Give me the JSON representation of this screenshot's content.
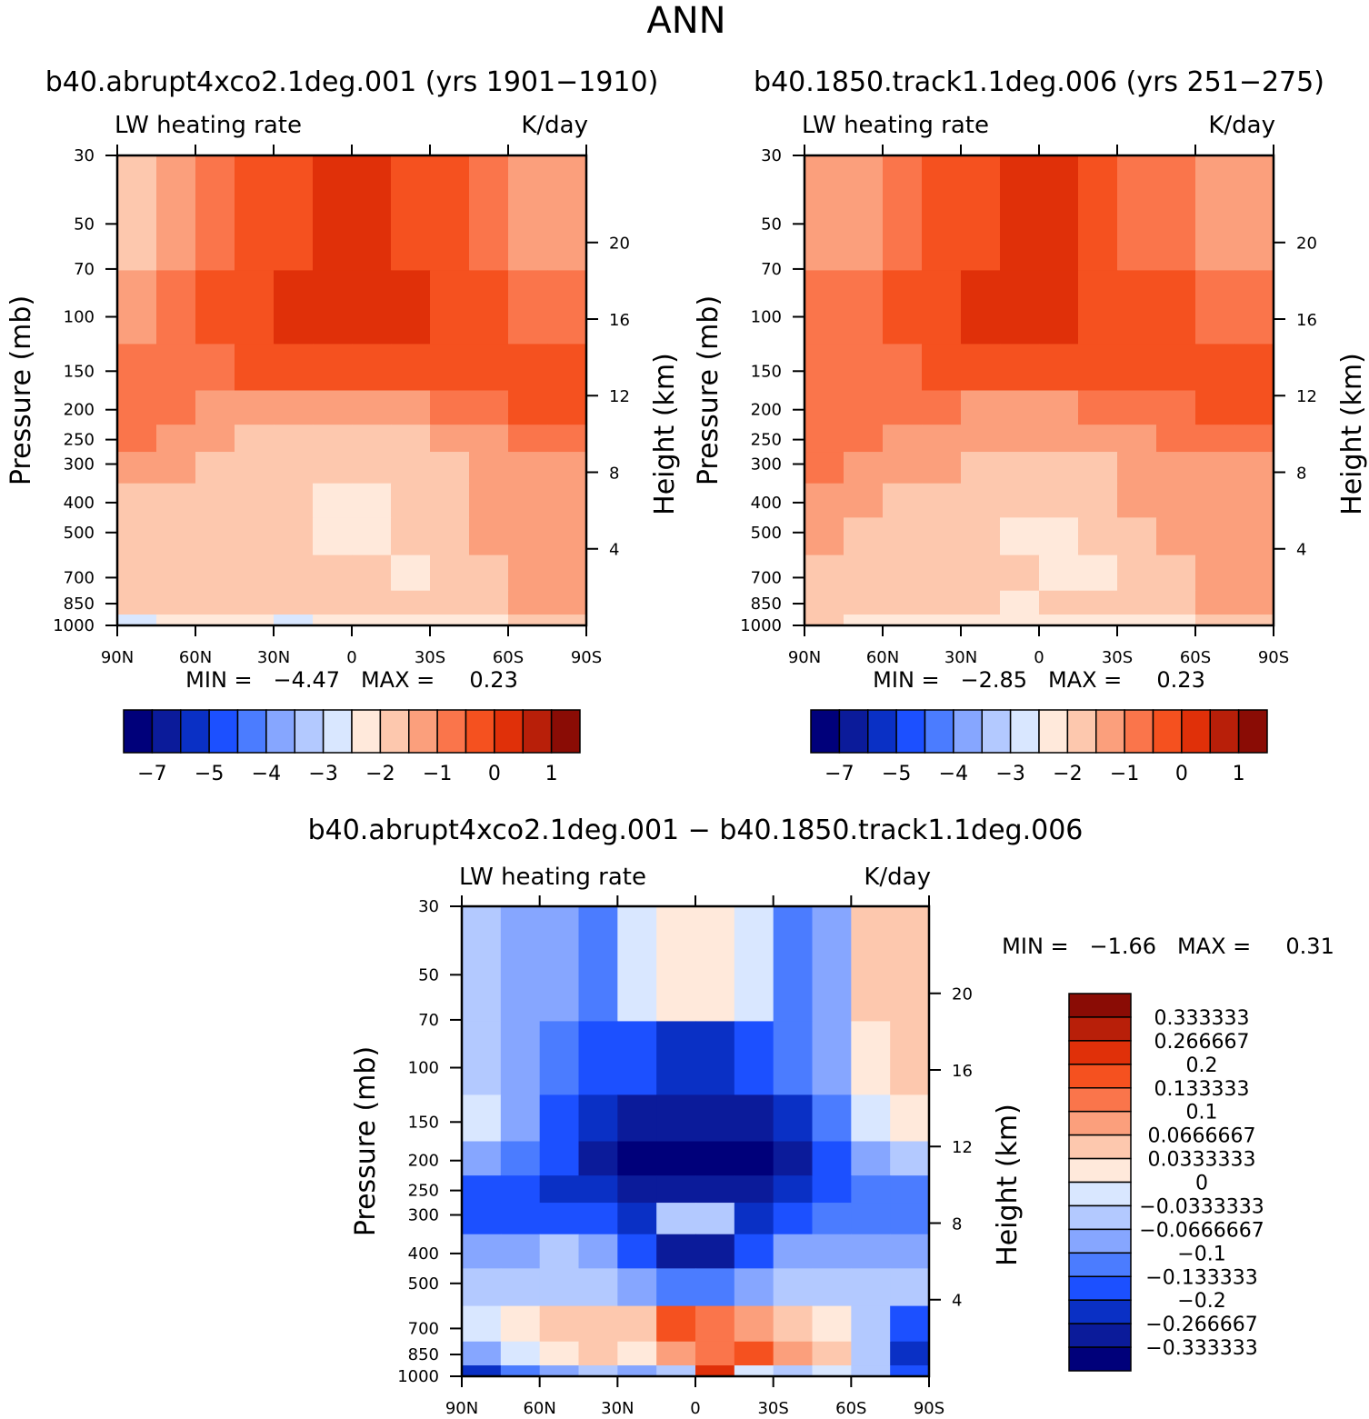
{
  "figure_title": "ANN",
  "chart_data": [
    {
      "type": "heatmap",
      "title": "b40.abrupt4xco2.1deg.001 (yrs 1901−1910)",
      "variable_label": "LW heating rate",
      "units_label": "K/day",
      "xlabel": "",
      "ylabel": "Pressure (mb)",
      "y2label": "Height (km)",
      "x_ticks": [
        "90N",
        "60N",
        "30N",
        "0",
        "30S",
        "60S",
        "90S"
      ],
      "y_ticks": [
        30,
        50,
        70,
        100,
        150,
        200,
        250,
        300,
        400,
        500,
        700,
        850,
        1000
      ],
      "ylim": [
        30,
        1000
      ],
      "height_ticks": [
        20,
        16,
        12,
        8,
        4
      ],
      "stats_text": "MIN =   −4.47   MAX =     0.23",
      "min": -4.47,
      "max": 0.23,
      "colorbar_labels": [
        "−7",
        "−5",
        "−4",
        "−3",
        "−2",
        "−1",
        "0",
        "1"
      ],
      "bands": [
        {
          "pressure": 50,
          "levels": [
            9,
            10,
            11,
            12,
            12,
            13,
            13,
            12,
            12,
            11,
            10,
            10
          ]
        },
        {
          "pressure": 100,
          "levels": [
            10,
            11,
            12,
            12,
            13,
            13,
            13,
            13,
            12,
            12,
            11,
            11
          ]
        },
        {
          "pressure": 150,
          "levels": [
            11,
            11,
            11,
            12,
            12,
            12,
            12,
            12,
            12,
            12,
            12,
            12
          ]
        },
        {
          "pressure": 200,
          "levels": [
            11,
            11,
            10,
            10,
            10,
            10,
            10,
            10,
            11,
            11,
            12,
            12
          ]
        },
        {
          "pressure": 250,
          "levels": [
            11,
            10,
            10,
            9,
            9,
            9,
            9,
            9,
            10,
            10,
            11,
            11
          ]
        },
        {
          "pressure": 300,
          "levels": [
            10,
            10,
            9,
            9,
            9,
            9,
            9,
            9,
            9,
            10,
            10,
            10
          ]
        },
        {
          "pressure": 400,
          "levels": [
            9,
            9,
            9,
            9,
            9,
            8,
            8,
            9,
            9,
            10,
            10,
            10
          ]
        },
        {
          "pressure": 500,
          "levels": [
            9,
            9,
            9,
            9,
            9,
            8,
            8,
            9,
            9,
            10,
            10,
            10
          ]
        },
        {
          "pressure": 700,
          "levels": [
            9,
            9,
            9,
            9,
            9,
            9,
            9,
            8,
            9,
            9,
            10,
            10
          ]
        },
        {
          "pressure": 850,
          "levels": [
            9,
            9,
            9,
            9,
            9,
            9,
            9,
            9,
            9,
            9,
            10,
            10
          ]
        },
        {
          "pressure": 1000,
          "levels": [
            7,
            8,
            8,
            8,
            7,
            8,
            8,
            8,
            8,
            8,
            9,
            9
          ]
        }
      ]
    },
    {
      "type": "heatmap",
      "title": "b40.1850.track1.1deg.006 (yrs 251−275)",
      "variable_label": "LW heating rate",
      "units_label": "K/day",
      "xlabel": "",
      "ylabel": "Pressure (mb)",
      "y2label": "Height (km)",
      "x_ticks": [
        "90N",
        "60N",
        "30N",
        "0",
        "30S",
        "60S",
        "90S"
      ],
      "y_ticks": [
        30,
        50,
        70,
        100,
        150,
        200,
        250,
        300,
        400,
        500,
        700,
        850,
        1000
      ],
      "ylim": [
        30,
        1000
      ],
      "height_ticks": [
        20,
        16,
        12,
        8,
        4
      ],
      "stats_text": "MIN =   −2.85   MAX =     0.23",
      "min": -2.85,
      "max": 0.23,
      "colorbar_labels": [
        "−7",
        "−5",
        "−4",
        "−3",
        "−2",
        "−1",
        "0",
        "1"
      ],
      "bands": [
        {
          "pressure": 50,
          "levels": [
            10,
            10,
            11,
            12,
            12,
            13,
            13,
            12,
            11,
            11,
            10,
            10
          ]
        },
        {
          "pressure": 100,
          "levels": [
            11,
            11,
            12,
            12,
            13,
            13,
            13,
            12,
            12,
            12,
            11,
            11
          ]
        },
        {
          "pressure": 150,
          "levels": [
            11,
            11,
            11,
            12,
            12,
            12,
            12,
            12,
            12,
            12,
            12,
            12
          ]
        },
        {
          "pressure": 200,
          "levels": [
            11,
            11,
            11,
            11,
            10,
            10,
            10,
            11,
            11,
            11,
            12,
            12
          ]
        },
        {
          "pressure": 250,
          "levels": [
            11,
            11,
            10,
            10,
            10,
            10,
            10,
            10,
            10,
            11,
            11,
            11
          ]
        },
        {
          "pressure": 300,
          "levels": [
            11,
            10,
            10,
            10,
            9,
            9,
            9,
            9,
            10,
            10,
            10,
            10
          ]
        },
        {
          "pressure": 400,
          "levels": [
            10,
            10,
            9,
            9,
            9,
            9,
            9,
            9,
            10,
            10,
            10,
            10
          ]
        },
        {
          "pressure": 500,
          "levels": [
            10,
            9,
            9,
            9,
            9,
            8,
            8,
            9,
            9,
            10,
            10,
            10
          ]
        },
        {
          "pressure": 700,
          "levels": [
            9,
            9,
            9,
            9,
            9,
            9,
            8,
            8,
            9,
            9,
            10,
            10
          ]
        },
        {
          "pressure": 850,
          "levels": [
            9,
            9,
            9,
            9,
            9,
            8,
            9,
            9,
            9,
            9,
            10,
            10
          ]
        },
        {
          "pressure": 1000,
          "levels": [
            9,
            8,
            8,
            8,
            8,
            8,
            8,
            8,
            8,
            8,
            9,
            9
          ]
        }
      ]
    },
    {
      "type": "heatmap",
      "title": "b40.abrupt4xco2.1deg.001 − b40.1850.track1.1deg.006",
      "variable_label": "LW heating rate",
      "units_label": "K/day",
      "xlabel": "",
      "ylabel": "Pressure (mb)",
      "y2label": "Height (km)",
      "x_ticks": [
        "90N",
        "60N",
        "30N",
        "0",
        "30S",
        "60S",
        "90S"
      ],
      "y_ticks": [
        30,
        50,
        70,
        100,
        150,
        200,
        250,
        300,
        400,
        500,
        700,
        850,
        1000
      ],
      "ylim": [
        30,
        1000
      ],
      "height_ticks": [
        20,
        16,
        12,
        8,
        4
      ],
      "stats_text": "MIN =   −1.66   MAX =     0.31",
      "min": -1.66,
      "max": 0.31,
      "colorbar_labels": [
        "0.333333",
        "0.266667",
        "0.2",
        "0.133333",
        "0.1",
        "0.0666667",
        "0.0333333",
        "0",
        "−0.0333333",
        "−0.0666667",
        "−0.1",
        "−0.133333",
        "−0.2",
        "−0.266667",
        "−0.333333"
      ],
      "bands": [
        {
          "pressure": 50,
          "levels": [
            6,
            5,
            5,
            4,
            7,
            8,
            8,
            7,
            4,
            5,
            9,
            9
          ]
        },
        {
          "pressure": 100,
          "levels": [
            6,
            5,
            4,
            3,
            3,
            2,
            2,
            3,
            4,
            5,
            8,
            9
          ]
        },
        {
          "pressure": 150,
          "levels": [
            7,
            5,
            3,
            2,
            1,
            1,
            1,
            1,
            2,
            4,
            7,
            8
          ]
        },
        {
          "pressure": 200,
          "levels": [
            5,
            4,
            3,
            1,
            0,
            0,
            0,
            0,
            1,
            3,
            5,
            6
          ]
        },
        {
          "pressure": 250,
          "levels": [
            3,
            3,
            2,
            2,
            1,
            1,
            1,
            1,
            2,
            3,
            4,
            4
          ]
        },
        {
          "pressure": 300,
          "levels": [
            3,
            3,
            3,
            3,
            2,
            6,
            6,
            2,
            3,
            4,
            4,
            4
          ]
        },
        {
          "pressure": 400,
          "levels": [
            5,
            5,
            6,
            5,
            3,
            1,
            1,
            3,
            5,
            5,
            5,
            5
          ]
        },
        {
          "pressure": 500,
          "levels": [
            6,
            6,
            6,
            6,
            5,
            4,
            4,
            5,
            6,
            6,
            6,
            6
          ]
        },
        {
          "pressure": 700,
          "levels": [
            7,
            8,
            9,
            9,
            9,
            12,
            11,
            10,
            9,
            8,
            6,
            3
          ]
        },
        {
          "pressure": 850,
          "levels": [
            5,
            7,
            8,
            9,
            8,
            10,
            11,
            12,
            10,
            9,
            6,
            2
          ]
        },
        {
          "pressure": 1000,
          "levels": [
            2,
            4,
            5,
            6,
            5,
            6,
            13,
            7,
            6,
            7,
            6,
            3
          ]
        }
      ]
    }
  ],
  "palette": [
    "#00007a",
    "#0b1b9a",
    "#0a30c5",
    "#1c50ff",
    "#4b7cff",
    "#86a6ff",
    "#b3c9ff",
    "#d9e7ff",
    "#ffe9db",
    "#fdc8ae",
    "#fb9f7c",
    "#fa754b",
    "#f5511f",
    "#e03009",
    "#b81f09",
    "#8a0c05"
  ]
}
